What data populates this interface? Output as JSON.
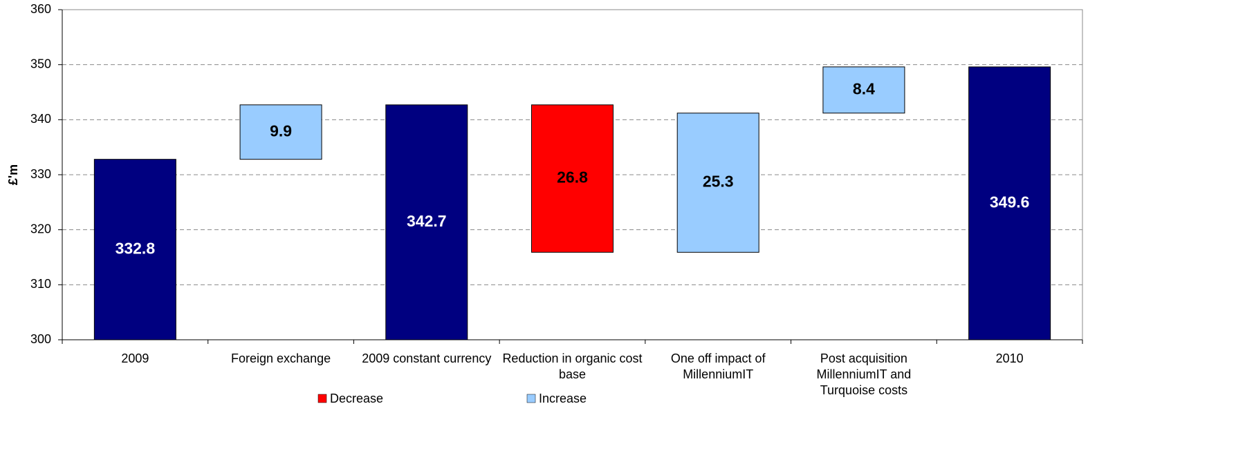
{
  "chart_data": {
    "type": "waterfall",
    "y_label": "£'m",
    "categories": [
      "2009",
      "Foreign exchange",
      "2009 constant currency",
      "Reduction in organic cost base",
      "One off impact of MillenniumIT",
      "Post acquisition MillenniumIT and Turquoise costs",
      "2010"
    ],
    "values": [
      332.8,
      9.9,
      342.7,
      26.8,
      25.3,
      8.4,
      349.6
    ],
    "total_color": "#000080",
    "legend": [
      {
        "name": "Decrease",
        "color": "#ff0000",
        "sign": -1
      },
      {
        "name": "Increase",
        "color": "#99ccff",
        "sign": 1
      }
    ],
    "bar_legend": [
      null,
      1,
      null,
      0,
      1,
      1,
      null
    ],
    "ylim": [
      300,
      360
    ],
    "yticks": [
      300,
      310,
      320,
      330,
      340,
      350,
      360
    ],
    "grid": true
  }
}
